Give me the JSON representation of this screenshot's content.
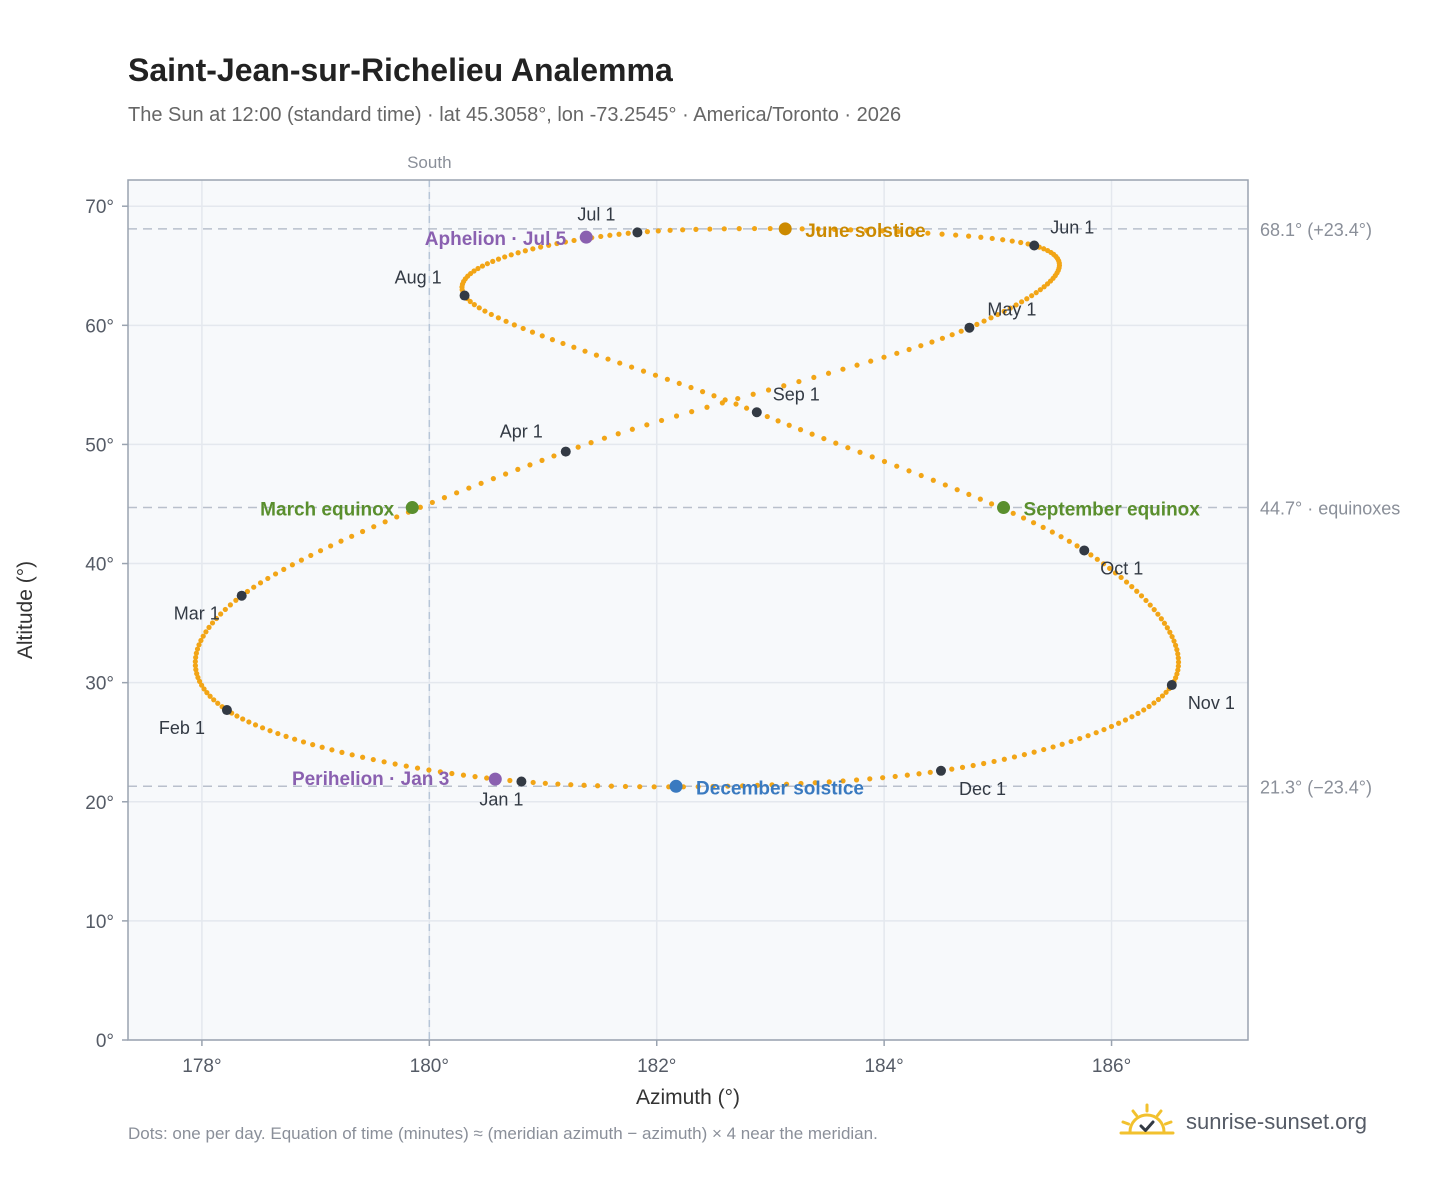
{
  "header": {
    "title": "Saint-Jean-sur-Richelieu Analemma",
    "subtitle": "The Sun at 12:00 (standard time) · lat 45.3058°, lon -73.2545° · America/Toronto · 2026"
  },
  "footer": {
    "note": "Dots: one per day. Equation of time (minutes) ≈ (meridian azimuth − azimuth) × 4 near the meridian.",
    "brand": "sunrise-sunset.org"
  },
  "colors": {
    "path": "#f2a516",
    "month": "#333a44",
    "equinox": "#5a8f2e",
    "june": "#cc8a00",
    "december": "#3a7ac0",
    "apsis": "#8a60b0",
    "grid": "#e4e8ee",
    "ref": "#b9c0cc",
    "axis": "#9aa3b0"
  },
  "chart_data": {
    "type": "scatter",
    "xlabel": "Azimuth (°)",
    "ylabel": "Altitude (°)",
    "xlim": [
      177.35,
      187.2
    ],
    "ylim": [
      0,
      72.2
    ],
    "xticks": [
      178,
      180,
      182,
      184,
      186
    ],
    "yticks": [
      0,
      10,
      20,
      30,
      40,
      50,
      60,
      70
    ],
    "x_tick_labels": [
      "178°",
      "180°",
      "182°",
      "184°",
      "186°"
    ],
    "y_tick_labels": [
      "0°",
      "10°",
      "20°",
      "30°",
      "40°",
      "50°",
      "60°",
      "70°"
    ],
    "meridian": {
      "azimuth": 180,
      "label": "South"
    },
    "reference_lines": [
      {
        "altitude": 68.1,
        "label": "68.1° (+23.4°)"
      },
      {
        "altitude": 44.7,
        "label": "44.7° · equinoxes"
      },
      {
        "altitude": 21.3,
        "label": "21.3° (−23.4°)"
      }
    ],
    "months": [
      {
        "label": "Jan 1",
        "az": 180.81,
        "alt": 21.7
      },
      {
        "label": "Feb 1",
        "az": 178.22,
        "alt": 27.7
      },
      {
        "label": "Mar 1",
        "az": 178.35,
        "alt": 37.3
      },
      {
        "label": "Apr 1",
        "az": 181.2,
        "alt": 49.4
      },
      {
        "label": "May 1",
        "az": 184.75,
        "alt": 59.8
      },
      {
        "label": "Jun 1",
        "az": 185.32,
        "alt": 66.7
      },
      {
        "label": "Jul 1",
        "az": 181.83,
        "alt": 67.8
      },
      {
        "label": "Aug 1",
        "az": 180.31,
        "alt": 62.5
      },
      {
        "label": "Sep 1",
        "az": 182.88,
        "alt": 52.7
      },
      {
        "label": "Oct 1",
        "az": 185.76,
        "alt": 41.1
      },
      {
        "label": "Nov 1",
        "az": 186.53,
        "alt": 29.8
      },
      {
        "label": "Dec 1",
        "az": 184.5,
        "alt": 22.6
      }
    ],
    "events": [
      {
        "label": "March equinox",
        "az": 179.85,
        "alt": 44.7,
        "kind": "equinox"
      },
      {
        "label": "June solstice",
        "az": 183.13,
        "alt": 68.1,
        "kind": "june"
      },
      {
        "label": "September equinox",
        "az": 185.05,
        "alt": 44.7,
        "kind": "equinox"
      },
      {
        "label": "December solstice",
        "az": 182.17,
        "alt": 21.3,
        "kind": "december"
      },
      {
        "label": "Perihelion · Jan 3",
        "az": 180.58,
        "alt": 21.9,
        "kind": "apsis"
      },
      {
        "label": "Aphelion · Jul 5",
        "az": 181.38,
        "alt": 67.4,
        "kind": "apsis"
      }
    ]
  }
}
